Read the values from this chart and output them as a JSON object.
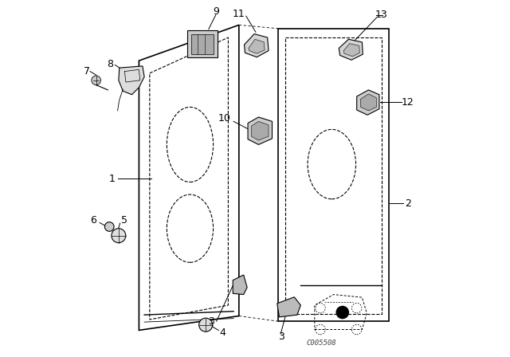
{
  "background_color": "#ffffff",
  "fig_width": 6.4,
  "fig_height": 4.48,
  "dpi": 100,
  "line_color": "#000000",
  "text_color": "#000000",
  "font_size_labels": 9,
  "watermark": "C005508"
}
